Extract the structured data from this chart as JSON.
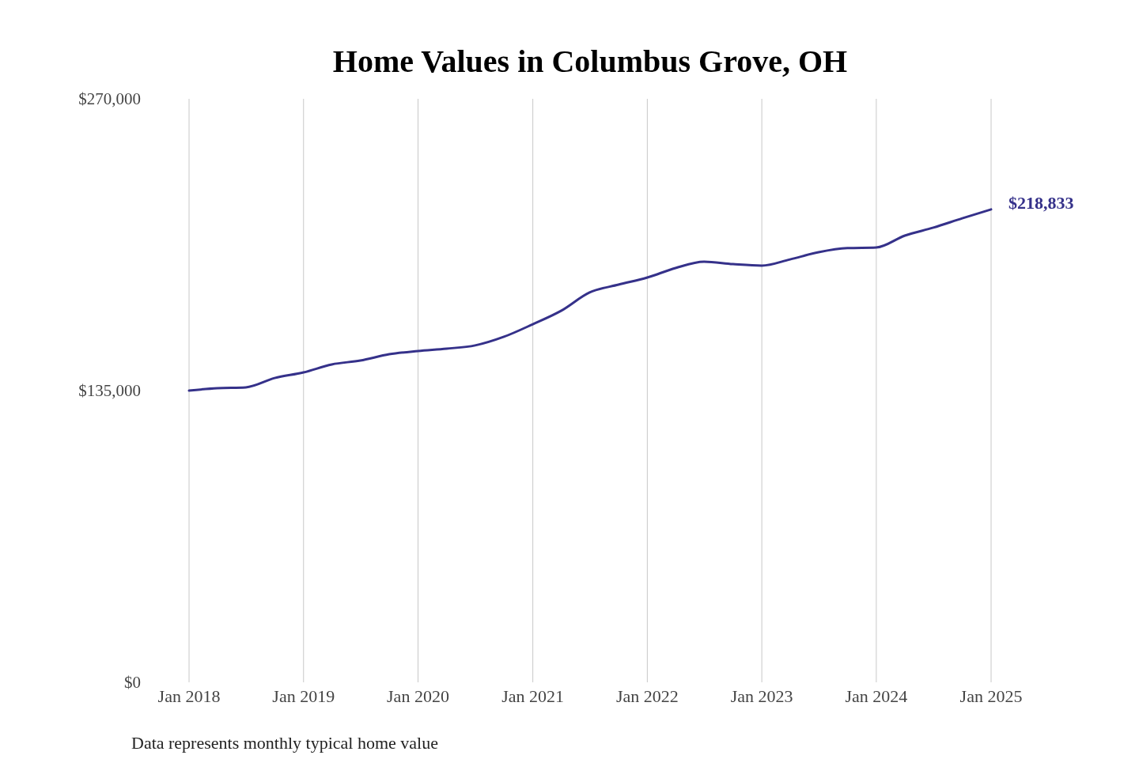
{
  "chart_data": {
    "type": "line",
    "title": "Home Values in Columbus Grove, OH",
    "x": [
      "2018-01",
      "2018-04",
      "2018-07",
      "2018-10",
      "2019-01",
      "2019-04",
      "2019-07",
      "2019-10",
      "2020-01",
      "2020-04",
      "2020-07",
      "2020-10",
      "2021-01",
      "2021-04",
      "2021-07",
      "2021-10",
      "2022-01",
      "2022-04",
      "2022-07",
      "2022-10",
      "2023-01",
      "2023-04",
      "2023-07",
      "2023-10",
      "2024-01",
      "2024-04",
      "2024-07",
      "2024-10",
      "2025-01"
    ],
    "series": [
      {
        "color": "#35318a",
        "values": [
          135000,
          136100,
          136500,
          140800,
          143400,
          147100,
          148900,
          151800,
          153300,
          154400,
          155900,
          159900,
          165700,
          171900,
          180400,
          184000,
          187300,
          191700,
          194600,
          193500,
          192800,
          195700,
          199000,
          200900,
          201200,
          206700,
          210400,
          214700,
          218833
        ]
      }
    ],
    "xlim": [
      "2018-01",
      "2025-01"
    ],
    "xticks": [
      {
        "value": "2018-01",
        "label": "Jan 2018"
      },
      {
        "value": "2019-01",
        "label": "Jan 2019"
      },
      {
        "value": "2020-01",
        "label": "Jan 2020"
      },
      {
        "value": "2021-01",
        "label": "Jan 2021"
      },
      {
        "value": "2022-01",
        "label": "Jan 2022"
      },
      {
        "value": "2023-01",
        "label": "Jan 2023"
      },
      {
        "value": "2024-01",
        "label": "Jan 2024"
      },
      {
        "value": "2025-01",
        "label": "Jan 2025"
      }
    ],
    "ylim": [
      0,
      270000
    ],
    "yticks": [
      {
        "value": 0,
        "label": "$0"
      },
      {
        "value": 135000,
        "label": "$135,000"
      },
      {
        "value": 270000,
        "label": "$270,000"
      }
    ],
    "grid": "x",
    "marker": "none",
    "line_style": "solid",
    "annotations": [
      {
        "text": "$218,833",
        "x": "2025-01",
        "y": 218833
      },
      "Data represents monthly typical home value"
    ]
  }
}
